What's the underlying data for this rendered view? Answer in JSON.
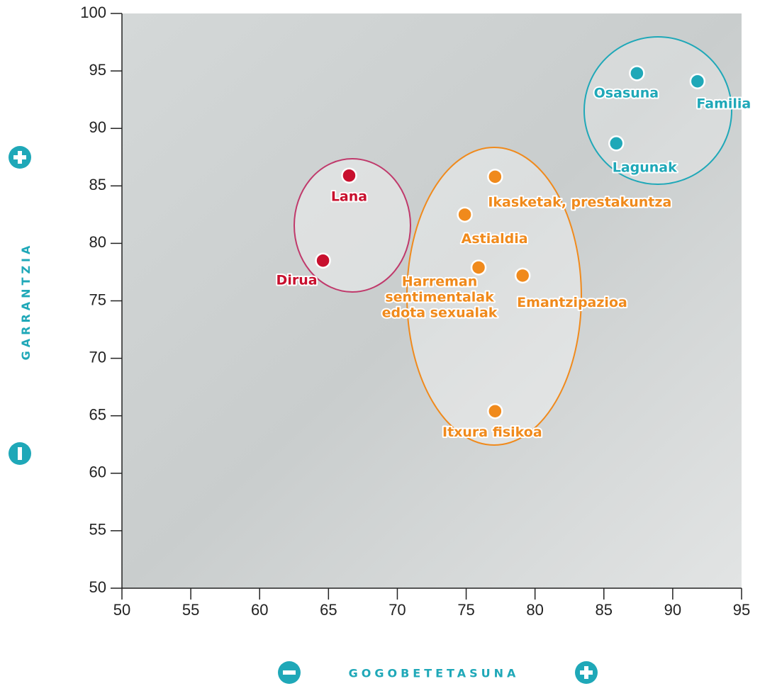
{
  "chart_data": {
    "type": "scatter",
    "x_label": "GOGOBETETASUNA",
    "y_label": "GARRANTZIA",
    "xlim": [
      50,
      95
    ],
    "ylim": [
      50,
      100
    ],
    "xticks": [
      50,
      55,
      60,
      65,
      70,
      75,
      80,
      85,
      90,
      95
    ],
    "yticks": [
      50,
      55,
      60,
      65,
      70,
      75,
      80,
      85,
      90,
      95,
      100
    ],
    "grid": false,
    "series": [
      {
        "color": "#c8102e",
        "x": [
          66.5,
          64.6
        ],
        "values": [
          85.9,
          78.5
        ],
        "labels": [
          "Lana",
          "Dirua"
        ]
      },
      {
        "color": "#f08a1c",
        "x": [
          77.1,
          74.9,
          75.9,
          79.1,
          77.1
        ],
        "values": [
          85.8,
          82.5,
          77.9,
          77.2,
          65.4
        ],
        "labels": [
          "Ikasketak, prestakuntza",
          "Astialdia",
          "Harreman\nsentimentalak\nedota sexualak",
          "Emantzipazioa",
          "Itxura fisikoa"
        ]
      },
      {
        "color": "#1fa8b8",
        "x": [
          87.4,
          91.8,
          85.9
        ],
        "values": [
          94.8,
          94.1,
          88.7
        ],
        "labels": [
          "Osasuna",
          "Familia",
          "Lagunak"
        ]
      }
    ]
  }
}
